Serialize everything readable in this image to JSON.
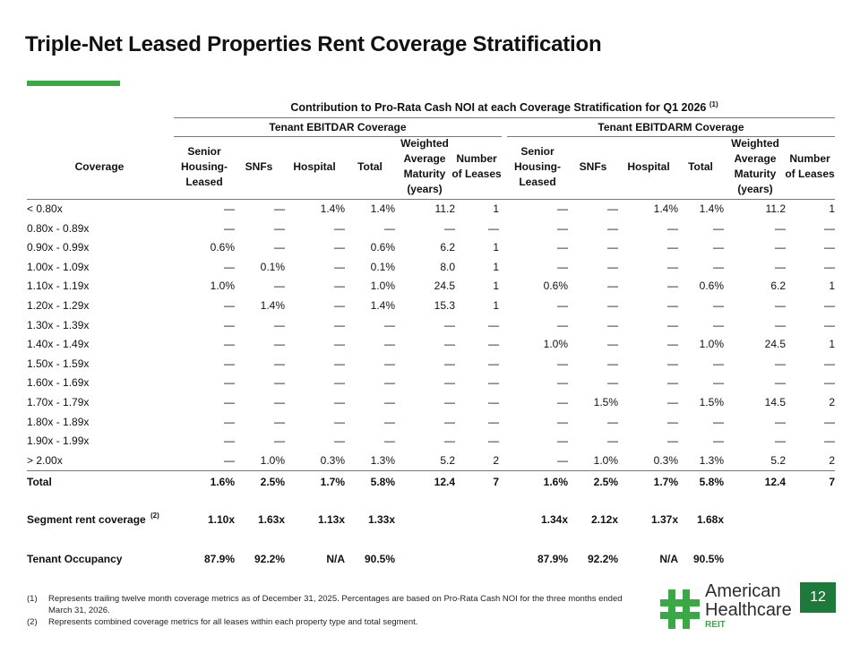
{
  "title": "Triple-Net Leased Properties Rent Coverage Stratification",
  "table": {
    "super_header": "Contribution to Pro-Rata Cash NOI at each Coverage Stratification for Q1 2026",
    "super_header_note": "(1)",
    "group1": "Tenant EBITDAR Coverage",
    "group2": "Tenant EBITDARM Coverage",
    "col_coverage": "Coverage",
    "columns": [
      "Senior Housing-Leased",
      "SNFs",
      "Hospital",
      "Total",
      "Weighted Average Maturity (years)",
      "Number of Leases"
    ],
    "rows": [
      {
        "label": "< 0.80x",
        "v": [
          "—",
          "—",
          "1.4%",
          "1.4%",
          "11.2",
          "1",
          "—",
          "—",
          "1.4%",
          "1.4%",
          "11.2",
          "1"
        ]
      },
      {
        "label": "0.80x - 0.89x",
        "v": [
          "—",
          "—",
          "—",
          "—",
          "—",
          "—",
          "—",
          "—",
          "—",
          "—",
          "—",
          "—"
        ]
      },
      {
        "label": "0.90x - 0.99x",
        "v": [
          "0.6%",
          "—",
          "—",
          "0.6%",
          "6.2",
          "1",
          "—",
          "—",
          "—",
          "—",
          "—",
          "—"
        ]
      },
      {
        "label": "1.00x - 1.09x",
        "v": [
          "—",
          "0.1%",
          "—",
          "0.1%",
          "8.0",
          "1",
          "—",
          "—",
          "—",
          "—",
          "—",
          "—"
        ]
      },
      {
        "label": "1.10x - 1.19x",
        "v": [
          "1.0%",
          "—",
          "—",
          "1.0%",
          "24.5",
          "1",
          "0.6%",
          "—",
          "—",
          "0.6%",
          "6.2",
          "1"
        ]
      },
      {
        "label": "1.20x - 1.29x",
        "v": [
          "—",
          "1.4%",
          "—",
          "1.4%",
          "15.3",
          "1",
          "—",
          "—",
          "—",
          "—",
          "—",
          "—"
        ]
      },
      {
        "label": "1.30x - 1.39x",
        "v": [
          "—",
          "—",
          "—",
          "—",
          "—",
          "—",
          "—",
          "—",
          "—",
          "—",
          "—",
          "—"
        ]
      },
      {
        "label": "1.40x - 1.49x",
        "v": [
          "—",
          "—",
          "—",
          "—",
          "—",
          "—",
          "1.0%",
          "—",
          "—",
          "1.0%",
          "24.5",
          "1"
        ]
      },
      {
        "label": "1.50x - 1.59x",
        "v": [
          "—",
          "—",
          "—",
          "—",
          "—",
          "—",
          "—",
          "—",
          "—",
          "—",
          "—",
          "—"
        ]
      },
      {
        "label": "1.60x - 1.69x",
        "v": [
          "—",
          "—",
          "—",
          "—",
          "—",
          "—",
          "—",
          "—",
          "—",
          "—",
          "—",
          "—"
        ]
      },
      {
        "label": "1.70x - 1.79x",
        "v": [
          "—",
          "—",
          "—",
          "—",
          "—",
          "—",
          "—",
          "1.5%",
          "—",
          "1.5%",
          "14.5",
          "2"
        ]
      },
      {
        "label": "1.80x - 1.89x",
        "v": [
          "—",
          "—",
          "—",
          "—",
          "—",
          "—",
          "—",
          "—",
          "—",
          "—",
          "—",
          "—"
        ]
      },
      {
        "label": "1.90x - 1.99x",
        "v": [
          "—",
          "—",
          "—",
          "—",
          "—",
          "—",
          "—",
          "—",
          "—",
          "—",
          "—",
          "—"
        ]
      },
      {
        "label": "> 2.00x",
        "v": [
          "—",
          "1.0%",
          "0.3%",
          "1.3%",
          "5.2",
          "2",
          "—",
          "1.0%",
          "0.3%",
          "1.3%",
          "5.2",
          "2"
        ]
      }
    ],
    "total_row": {
      "label": "Total",
      "v": [
        "1.6%",
        "2.5%",
        "1.7%",
        "5.8%",
        "12.4",
        "7",
        "1.6%",
        "2.5%",
        "1.7%",
        "5.8%",
        "12.4",
        "7"
      ]
    },
    "segment_row": {
      "label": "Segment rent coverage",
      "note": "(2)",
      "v": [
        "1.10x",
        "1.63x",
        "1.13x",
        "1.33x",
        "",
        "",
        "1.34x",
        "2.12x",
        "1.37x",
        "1.68x",
        "",
        ""
      ]
    },
    "occupancy_row": {
      "label": "Tenant Occupancy",
      "v": [
        "87.9%",
        "92.2%",
        "N/A",
        "90.5%",
        "",
        "",
        "87.9%",
        "92.2%",
        "N/A",
        "90.5%",
        "",
        ""
      ]
    }
  },
  "footnotes": [
    {
      "num": "(1)",
      "text": "Represents trailing twelve month coverage metrics as of December 31, 2025. Percentages are based on Pro-Rata Cash NOI for the three months ended March 31, 2026."
    },
    {
      "num": "(2)",
      "text": "Represents combined coverage metrics for all leases within each property type and total segment."
    }
  ],
  "logo": {
    "line1": "American",
    "line2": "Healthcare",
    "line3": "REIT"
  },
  "page_number": "12",
  "colors": {
    "accent": "#3aa845",
    "page_badge": "#1d7a3a",
    "text": "#111111"
  }
}
